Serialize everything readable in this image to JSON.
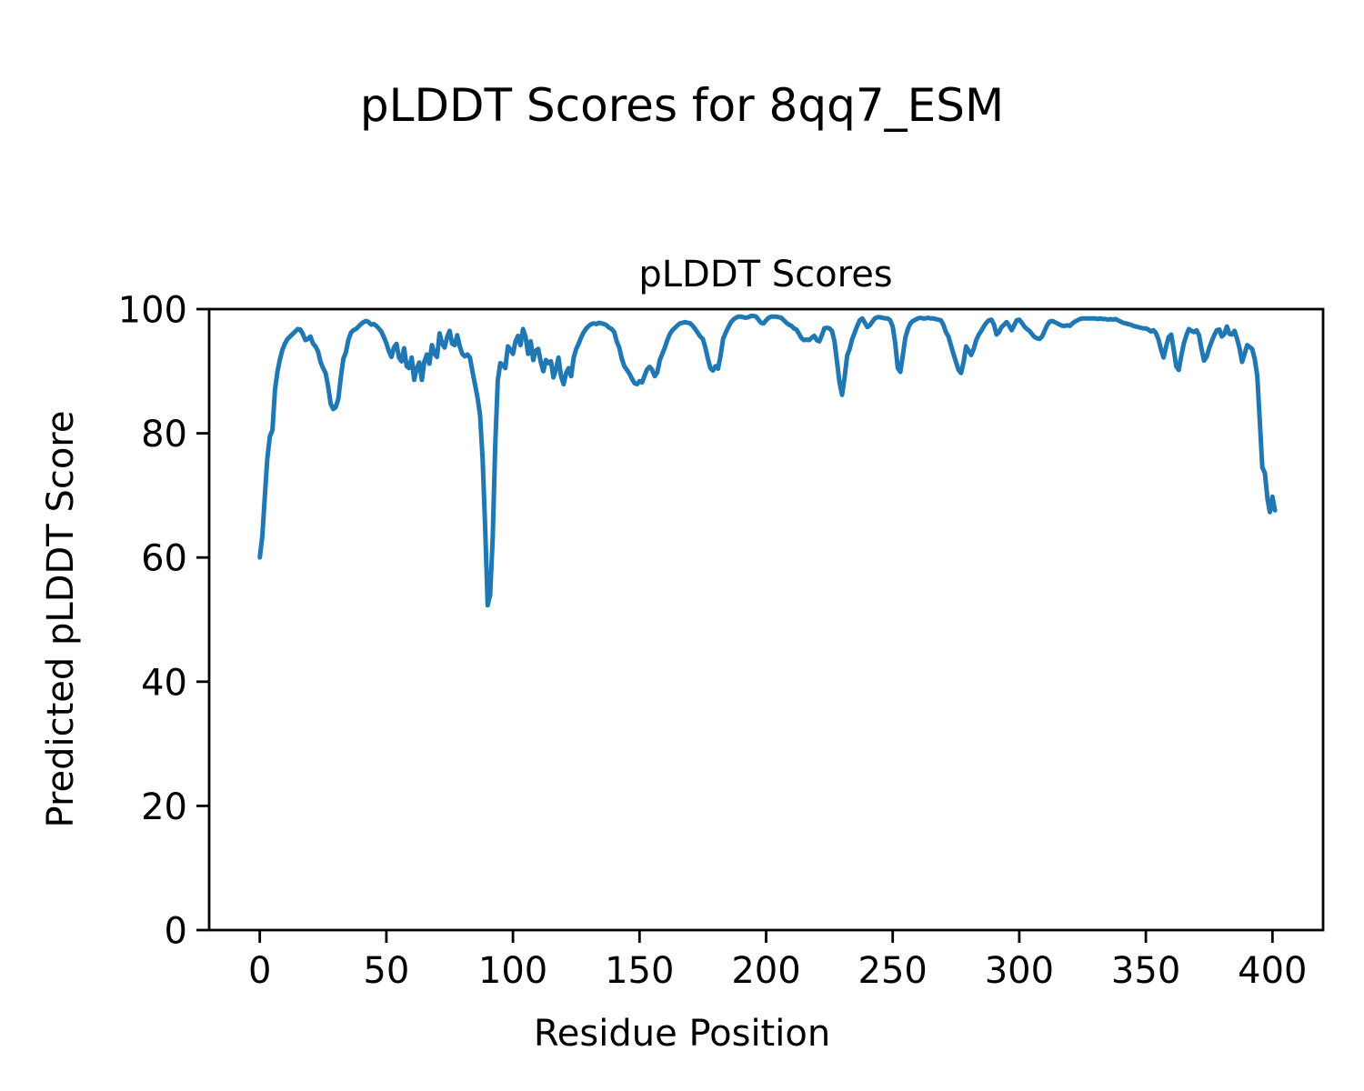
{
  "figure": {
    "suptitle": "pLDDT Scores for 8qq7_ESM"
  },
  "chart_data": {
    "type": "line",
    "title": "pLDDT Scores",
    "suptitle": "pLDDT Scores for 8qq7_ESM",
    "xlabel": "Residue Position",
    "ylabel": "Predicted pLDDT Score",
    "xlim": [
      -20,
      420
    ],
    "ylim": [
      0,
      100
    ],
    "xticks": [
      0,
      50,
      100,
      150,
      200,
      250,
      300,
      350,
      400
    ],
    "yticks": [
      0,
      20,
      40,
      60,
      80,
      100
    ],
    "grid": false,
    "legend": "none",
    "line_color": "#1f77b4",
    "line_width": 5,
    "series": [
      {
        "name": "pLDDT",
        "x_start": 0,
        "x_step": 1,
        "values": [
          60.0,
          63.5,
          70.0,
          76.0,
          79.5,
          80.5,
          87.0,
          90.0,
          92.0,
          93.5,
          94.5,
          95.2,
          95.6,
          96.0,
          96.4,
          96.8,
          96.7,
          96.0,
          95.0,
          95.2,
          95.6,
          94.5,
          94.0,
          93.2,
          91.5,
          90.5,
          89.7,
          87.5,
          84.8,
          83.9,
          84.2,
          85.5,
          89.0,
          92.0,
          93.0,
          95.0,
          96.2,
          96.6,
          96.8,
          97.2,
          97.6,
          97.9,
          98.1,
          97.9,
          97.5,
          97.6,
          97.3,
          96.9,
          96.4,
          95.5,
          94.5,
          93.2,
          92.3,
          93.8,
          94.4,
          92.2,
          91.6,
          93.7,
          90.8,
          90.5,
          92.2,
          88.6,
          90.5,
          91.4,
          88.6,
          91.5,
          92.7,
          91.2,
          94.2,
          92.8,
          92.3,
          96.1,
          94.5,
          93.8,
          95.5,
          96.5,
          94.4,
          94.2,
          95.8,
          94.0,
          92.8,
          92.4,
          92.7,
          92.2,
          90.0,
          87.9,
          85.8,
          83.0,
          76.0,
          65.0,
          52.3,
          54.0,
          63.0,
          78.0,
          88.5,
          91.3,
          91.0,
          90.5,
          94.0,
          93.5,
          92.8,
          94.8,
          95.7,
          94.2,
          96.8,
          95.5,
          92.8,
          94.8,
          91.8,
          93.3,
          93.6,
          91.5,
          90.0,
          91.8,
          91.3,
          91.6,
          89.0,
          90.3,
          92.2,
          89.2,
          87.9,
          89.7,
          90.5,
          89.2,
          92.2,
          93.6,
          94.5,
          95.5,
          96.3,
          96.9,
          97.3,
          97.6,
          97.7,
          97.6,
          97.8,
          97.7,
          97.6,
          97.4,
          97.0,
          96.8,
          96.3,
          94.8,
          93.8,
          92.0,
          90.8,
          90.2,
          89.6,
          88.8,
          88.1,
          87.9,
          88.4,
          88.2,
          89.3,
          90.3,
          90.7,
          90.2,
          89.2,
          89.8,
          91.8,
          92.8,
          93.8,
          95.0,
          96.0,
          96.6,
          97.0,
          97.4,
          97.7,
          97.8,
          97.9,
          97.8,
          97.7,
          97.3,
          96.8,
          96.2,
          95.6,
          95.2,
          93.8,
          92.0,
          90.5,
          90.1,
          90.8,
          90.4,
          92.5,
          95.2,
          96.2,
          97.0,
          97.8,
          98.3,
          98.6,
          98.8,
          98.8,
          98.7,
          98.6,
          98.7,
          98.9,
          98.9,
          98.8,
          98.3,
          97.8,
          97.7,
          98.2,
          98.6,
          98.8,
          98.8,
          98.8,
          98.7,
          98.6,
          98.2,
          97.8,
          97.5,
          97.3,
          96.9,
          96.7,
          96.0,
          95.3,
          95.0,
          95.1,
          95.0,
          95.4,
          95.7,
          95.0,
          94.8,
          95.8,
          96.9,
          97.0,
          96.9,
          96.5,
          94.8,
          91.5,
          88.2,
          86.2,
          89.0,
          92.5,
          93.6,
          95.2,
          96.2,
          97.3,
          98.2,
          98.5,
          97.8,
          97.1,
          97.4,
          98.0,
          98.5,
          98.7,
          98.7,
          98.6,
          98.5,
          98.5,
          98.2,
          97.2,
          94.5,
          90.5,
          89.9,
          92.5,
          95.4,
          96.8,
          97.7,
          98.1,
          98.3,
          98.5,
          98.6,
          98.5,
          98.5,
          98.6,
          98.5,
          98.5,
          98.4,
          98.3,
          98.2,
          97.5,
          96.3,
          95.6,
          94.2,
          92.8,
          91.5,
          90.2,
          89.7,
          91.5,
          94.0,
          93.3,
          92.6,
          93.6,
          95.0,
          95.9,
          96.5,
          97.2,
          97.8,
          98.2,
          98.3,
          97.5,
          95.9,
          96.3,
          97.1,
          97.5,
          97.9,
          97.3,
          96.6,
          97.4,
          98.2,
          98.3,
          97.8,
          97.2,
          96.8,
          96.5,
          96.0,
          95.5,
          95.3,
          95.2,
          95.6,
          96.5,
          97.4,
          98.0,
          98.1,
          97.9,
          97.7,
          97.5,
          97.3,
          97.3,
          97.4,
          97.3,
          97.7,
          98.0,
          98.2,
          98.4,
          98.5,
          98.5,
          98.5,
          98.5,
          98.5,
          98.5,
          98.4,
          98.5,
          98.4,
          98.4,
          98.3,
          98.4,
          98.3,
          98.4,
          98.2,
          98.0,
          97.8,
          97.7,
          97.6,
          97.5,
          97.3,
          97.2,
          97.1,
          97.0,
          96.9,
          96.9,
          96.7,
          96.4,
          96.6,
          96.1,
          95.1,
          93.5,
          92.2,
          94.0,
          95.5,
          95.9,
          93.5,
          90.8,
          90.2,
          92.5,
          94.5,
          95.8,
          96.8,
          96.5,
          96.3,
          96.6,
          95.8,
          93.5,
          91.7,
          92.3,
          93.7,
          94.8,
          95.8,
          96.6,
          96.7,
          95.6,
          96.0,
          97.2,
          96.0,
          95.9,
          96.5,
          95.3,
          93.7,
          91.5,
          92.8,
          94.2,
          93.9,
          93.6,
          92.0,
          89.3,
          82.0,
          74.5,
          73.6,
          69.5,
          67.3,
          69.8,
          67.6
        ]
      }
    ]
  }
}
